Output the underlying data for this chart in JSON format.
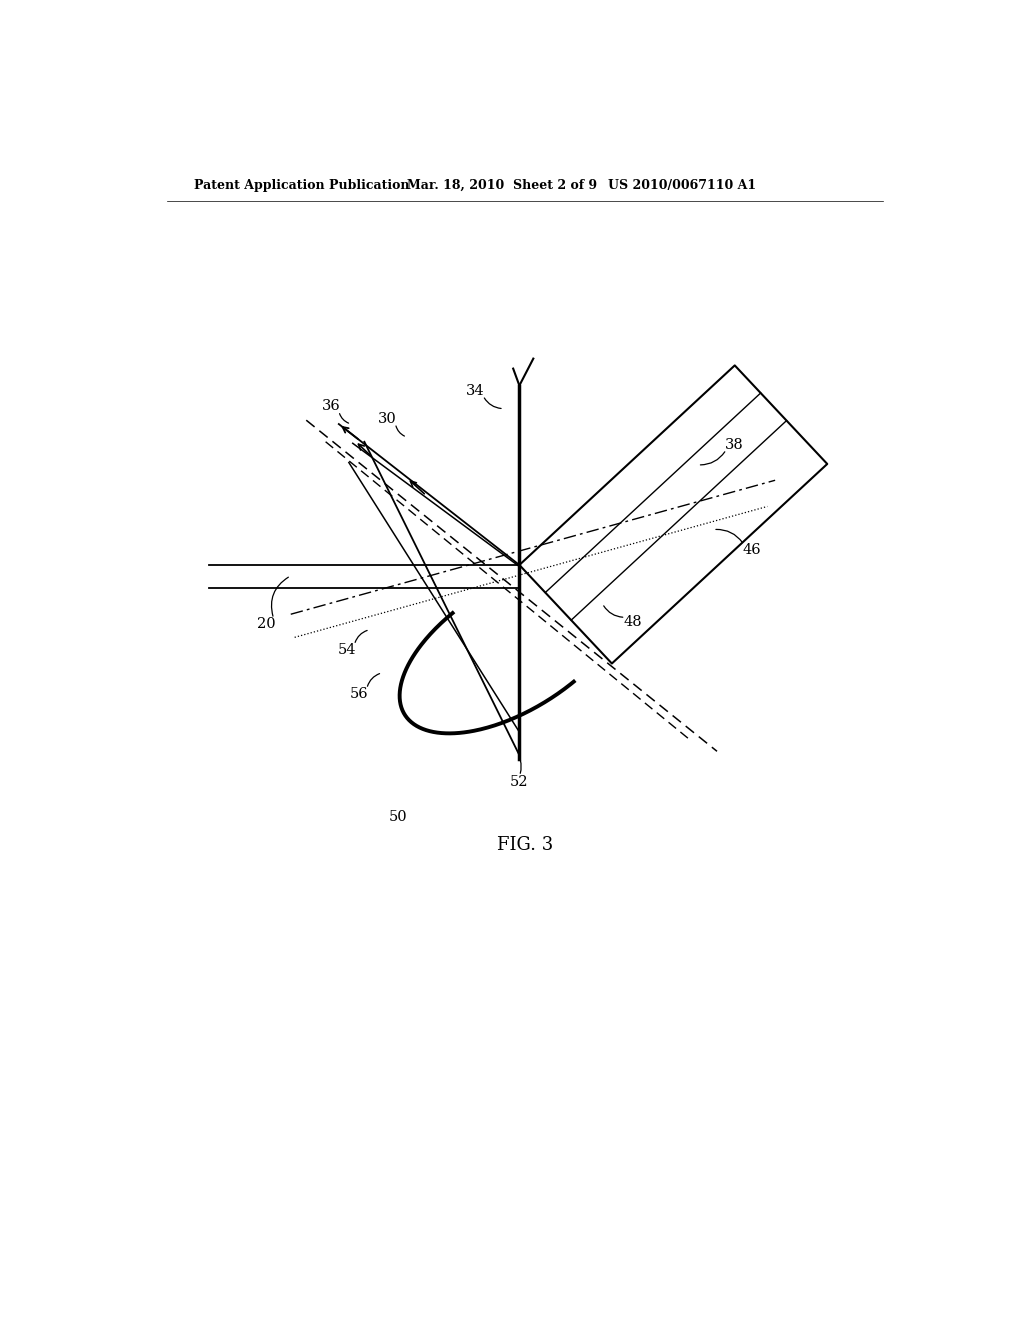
{
  "bg_color": "#ffffff",
  "header_text": "Patent Application Publication",
  "header_date": "Mar. 18, 2010  Sheet 2 of 9",
  "header_patent": "US 2010/0067110 A1",
  "fig_label": "FIG. 3"
}
